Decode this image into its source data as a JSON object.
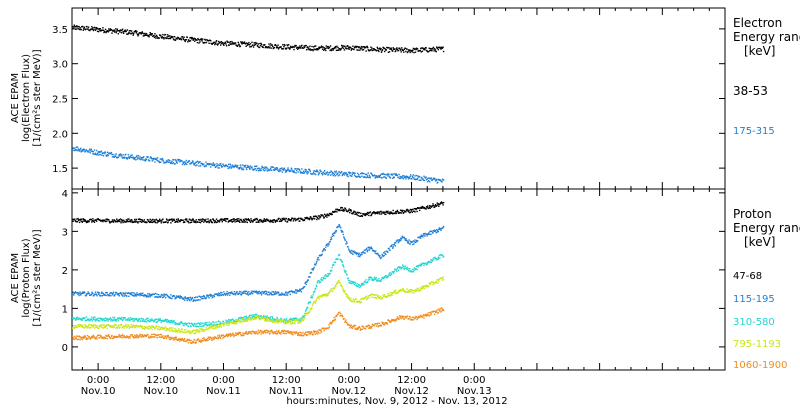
{
  "chart_data": {
    "type": "scatter",
    "xlabel": "hours:minutes, Nov.  9, 2012 - Nov. 13, 2012",
    "x_range_hours": [
      -5,
      120
    ],
    "x_ticks": [
      {
        "hour": 0,
        "time": "0:00",
        "date": "Nov.10"
      },
      {
        "hour": 12,
        "time": "12:00",
        "date": "Nov.10"
      },
      {
        "hour": 24,
        "time": "0:00",
        "date": "Nov.11"
      },
      {
        "hour": 36,
        "time": "12:00",
        "date": "Nov.11"
      },
      {
        "hour": 48,
        "time": "0:00",
        "date": "Nov.12"
      },
      {
        "hour": 60,
        "time": "12:00",
        "date": "Nov.12"
      },
      {
        "hour": 72,
        "time": "0:00",
        "date": "Nov.13"
      }
    ],
    "panels": [
      {
        "id": "electron",
        "ylabel_lines": [
          "ACE EPAM",
          "log(Electron Flux)",
          "[1/(cm²s ster MeV)]"
        ],
        "ylim": [
          1.2,
          3.8
        ],
        "yticks": [
          "1.5",
          "2.0",
          "2.5",
          "3.0",
          "3.5"
        ],
        "yticks_values": [
          1.5,
          2.0,
          2.5,
          3.0,
          3.5
        ],
        "legend_title": [
          "Electron",
          "Energy range",
          "[keV]"
        ],
        "series": [
          {
            "name": "38-53",
            "color": "#000000",
            "x": [
              -5,
              0,
              6,
              12,
              18,
              24,
              30,
              36,
              42,
              48,
              54,
              60,
              66
            ],
            "y": [
              3.53,
              3.5,
              3.46,
              3.4,
              3.35,
              3.3,
              3.28,
              3.25,
              3.23,
              3.24,
              3.21,
              3.2,
              3.22
            ]
          },
          {
            "name": "175-315",
            "color": "#1f7fd4",
            "x": [
              -5,
              0,
              6,
              12,
              18,
              24,
              30,
              36,
              42,
              48,
              54,
              60,
              66
            ],
            "y": [
              1.8,
              1.73,
              1.67,
              1.62,
              1.58,
              1.54,
              1.51,
              1.48,
              1.45,
              1.42,
              1.4,
              1.38,
              1.32
            ]
          }
        ]
      },
      {
        "id": "proton",
        "ylabel_lines": [
          "ACE EPAM",
          "log(Proton Flux)",
          "[1/(cm²s ster MeV)]"
        ],
        "ylim": [
          -0.6,
          4.1
        ],
        "yticks": [
          "0",
          "1",
          "2",
          "3",
          "4"
        ],
        "yticks_values": [
          0,
          1,
          2,
          3,
          4
        ],
        "legend_title": [
          "Proton",
          "Energy range",
          "[keV]"
        ],
        "series": [
          {
            "name": "47-68",
            "color": "#000000",
            "x": [
              -5,
              6,
              12,
              18,
              24,
              30,
              36,
              39,
              42,
              44,
              46,
              48,
              50,
              54,
              60,
              66
            ],
            "y": [
              3.3,
              3.29,
              3.29,
              3.29,
              3.3,
              3.3,
              3.31,
              3.33,
              3.38,
              3.45,
              3.6,
              3.55,
              3.45,
              3.5,
              3.55,
              3.75
            ]
          },
          {
            "name": "115-195",
            "color": "#1f7fd4",
            "x": [
              -5,
              6,
              12,
              18,
              24,
              30,
              36,
              39,
              42,
              44,
              46,
              48,
              50,
              52,
              54,
              58,
              60,
              62,
              66
            ],
            "y": [
              1.4,
              1.38,
              1.35,
              1.25,
              1.4,
              1.42,
              1.4,
              1.5,
              2.3,
              2.7,
              3.2,
              2.5,
              2.4,
              2.6,
              2.35,
              2.85,
              2.7,
              2.9,
              3.1
            ]
          },
          {
            "name": "310-580",
            "color": "#22d6d0",
            "x": [
              -5,
              6,
              12,
              18,
              24,
              30,
              36,
              39,
              42,
              44,
              46,
              48,
              50,
              52,
              54,
              58,
              60,
              62,
              66
            ],
            "y": [
              0.75,
              0.73,
              0.7,
              0.58,
              0.65,
              0.82,
              0.7,
              0.75,
              1.7,
              1.9,
              2.4,
              1.7,
              1.6,
              1.8,
              1.75,
              2.1,
              2.0,
              2.15,
              2.4
            ]
          },
          {
            "name": "795-1193",
            "color": "#c8e619",
            "x": [
              -5,
              6,
              12,
              18,
              24,
              30,
              36,
              39,
              42,
              44,
              46,
              48,
              50,
              52,
              54,
              58,
              60,
              62,
              66
            ],
            "y": [
              0.55,
              0.55,
              0.5,
              0.4,
              0.6,
              0.78,
              0.65,
              0.7,
              1.3,
              1.4,
              1.7,
              1.25,
              1.2,
              1.35,
              1.3,
              1.5,
              1.45,
              1.55,
              1.8
            ]
          },
          {
            "name": "1060-1900",
            "color": "#f08c1e",
            "x": [
              -5,
              6,
              12,
              18,
              24,
              30,
              36,
              39,
              42,
              44,
              46,
              48,
              50,
              52,
              54,
              58,
              60,
              62,
              66
            ],
            "y": [
              0.25,
              0.3,
              0.3,
              0.15,
              0.3,
              0.4,
              0.4,
              0.35,
              0.4,
              0.55,
              0.9,
              0.55,
              0.5,
              0.55,
              0.6,
              0.8,
              0.75,
              0.8,
              1.0
            ]
          }
        ]
      }
    ]
  }
}
